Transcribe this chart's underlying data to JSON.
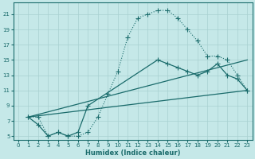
{
  "xlabel": "Humidex (Indice chaleur)",
  "bg_color": "#c5e8e8",
  "grid_color": "#a8d0d0",
  "line_color": "#1a6b6b",
  "xlim": [
    -0.5,
    23.5
  ],
  "ylim": [
    4.5,
    22.5
  ],
  "xticks": [
    0,
    1,
    2,
    3,
    4,
    5,
    6,
    7,
    8,
    9,
    10,
    11,
    12,
    13,
    14,
    15,
    16,
    17,
    18,
    19,
    20,
    21,
    22,
    23
  ],
  "yticks": [
    5,
    7,
    9,
    11,
    13,
    15,
    17,
    19,
    21
  ],
  "curve_dotted_x": [
    1,
    2,
    3,
    4,
    5,
    6,
    7,
    8,
    9,
    10,
    11,
    12,
    13,
    14,
    15,
    16,
    17,
    18,
    19,
    20,
    21,
    22,
    23
  ],
  "curve_dotted_y": [
    7.5,
    7.5,
    5.0,
    5.5,
    5.0,
    5.0,
    5.5,
    7.5,
    10.5,
    13.5,
    18.0,
    20.5,
    21.0,
    21.5,
    21.5,
    20.5,
    19.0,
    17.5,
    15.5,
    15.5,
    15.0,
    13.0,
    11.0
  ],
  "curve_solid_markers_x": [
    1,
    2,
    3,
    4,
    5,
    6,
    7,
    14,
    15,
    16,
    17,
    18,
    19,
    20,
    21,
    22,
    23
  ],
  "curve_solid_markers_y": [
    7.5,
    6.5,
    5.0,
    5.5,
    5.0,
    5.5,
    9.0,
    15.0,
    14.5,
    14.0,
    13.5,
    13.0,
    13.5,
    14.5,
    13.0,
    12.5,
    11.0
  ],
  "curve_line1_x": [
    1,
    23
  ],
  "curve_line1_y": [
    7.5,
    15.0
  ],
  "curve_line2_x": [
    1,
    23
  ],
  "curve_line2_y": [
    7.5,
    11.0
  ]
}
